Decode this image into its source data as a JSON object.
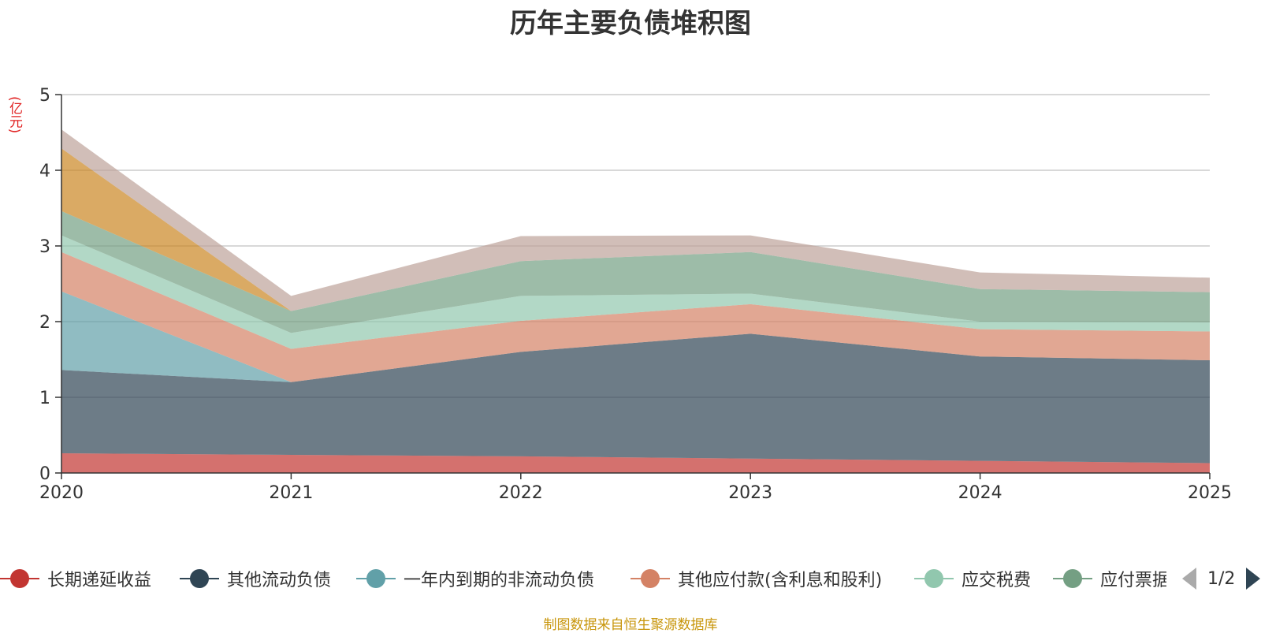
{
  "chart_title": "历年主要负债堆积图",
  "unit_label": "(亿元)",
  "source_note": "制图数据来自恒生聚源数据库",
  "legend_pager": {
    "text": "1/2"
  },
  "chart_data": {
    "type": "area",
    "stacked": true,
    "title": "历年主要负债堆积图",
    "ylabel": "(亿元)",
    "x": [
      "2020",
      "2021",
      "2022",
      "2023",
      "2024",
      "2025"
    ],
    "ylim": [
      0,
      5
    ],
    "yticks": [
      0,
      1,
      2,
      3,
      4,
      5
    ],
    "grid": true,
    "legend_position": "bottom",
    "series": [
      {
        "name": "长期递延收益",
        "color": "#c23531",
        "values": [
          0.26,
          0.24,
          0.22,
          0.19,
          0.16,
          0.13
        ]
      },
      {
        "name": "其他流动负债",
        "color": "#2f4554",
        "values": [
          1.1,
          0.96,
          1.38,
          1.65,
          1.38,
          1.36
        ]
      },
      {
        "name": "一年内到期的非流动负债",
        "color": "#61a0a8",
        "values": [
          1.04,
          0.0,
          0.0,
          0.0,
          0.0,
          0.0
        ]
      },
      {
        "name": "其他应付款(含利息和股利)",
        "color": "#d48265",
        "values": [
          0.52,
          0.44,
          0.41,
          0.39,
          0.36,
          0.38
        ]
      },
      {
        "name": "应交税费",
        "color": "#91c7ae",
        "values": [
          0.22,
          0.21,
          0.33,
          0.14,
          0.1,
          0.12
        ]
      },
      {
        "name": "应付票据",
        "color": "#749f83",
        "values": [
          0.32,
          0.29,
          0.46,
          0.55,
          0.43,
          0.4
        ]
      },
      {
        "name": "",
        "color": "#ca8622",
        "values": [
          0.83,
          0.0,
          0.0,
          0.0,
          0.0,
          0.0
        ]
      },
      {
        "name": "",
        "color": "#bda29a",
        "values": [
          0.25,
          0.2,
          0.33,
          0.22,
          0.22,
          0.19
        ]
      }
    ]
  }
}
